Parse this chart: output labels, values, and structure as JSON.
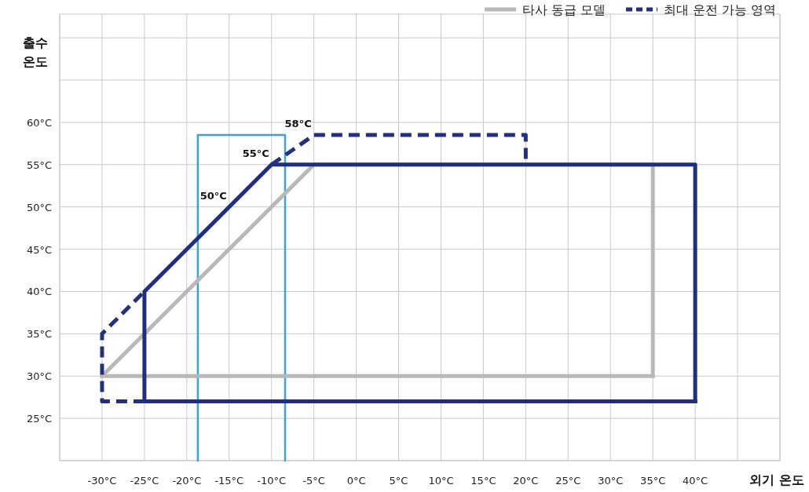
{
  "chart_data": {
    "type": "line",
    "xlabel": "외기 온도",
    "ylabel": "출수\n온도",
    "legend": "top right",
    "grid": true,
    "marker": "none",
    "xlim": [
      -35,
      50
    ],
    "ylim": [
      20,
      72.8
    ],
    "xticks": [
      {
        "value": -35,
        "label": null
      },
      {
        "value": -30,
        "label": "-30°C"
      },
      {
        "value": -25,
        "label": "-25°C"
      },
      {
        "value": -20,
        "label": "-20°C"
      },
      {
        "value": -15,
        "label": "-15°C"
      },
      {
        "value": -10,
        "label": "-10°C"
      },
      {
        "value": -5,
        "label": "-5°C"
      },
      {
        "value": 0,
        "label": "0°C"
      },
      {
        "value": 5,
        "label": "5°C"
      },
      {
        "value": 10,
        "label": "10°C"
      },
      {
        "value": 15,
        "label": "15°C"
      },
      {
        "value": 20,
        "label": "20°C"
      },
      {
        "value": 25,
        "label": "25°C"
      },
      {
        "value": 30,
        "label": "30°C"
      },
      {
        "value": 35,
        "label": "35°C"
      },
      {
        "value": 40,
        "label": "40°C"
      },
      {
        "value": 45,
        "label": null
      },
      {
        "value": 50,
        "label": null
      }
    ],
    "yticks": [
      {
        "value": 20,
        "label": null
      },
      {
        "value": 25,
        "label": "25°C"
      },
      {
        "value": 30,
        "label": "30°C"
      },
      {
        "value": 35,
        "label": "35°C"
      },
      {
        "value": 40,
        "label": "40°C"
      },
      {
        "value": 45,
        "label": "45°C"
      },
      {
        "value": 50,
        "label": "50°C"
      },
      {
        "value": 55,
        "label": "55°C"
      },
      {
        "value": 60,
        "label": "60°C"
      },
      {
        "value": 65,
        "label": null
      },
      {
        "value": 70,
        "label": null
      }
    ],
    "series": [
      {
        "color": "#3ea0dc",
        "line_style": "solid",
        "x": [
          -18.7,
          -18.7,
          -8.4,
          -8.4
        ],
        "values": [
          20,
          58.5,
          58.5,
          20
        ]
      },
      {
        "name": "타사 동급 모델",
        "color": "#b8b8b8",
        "line_style": "solid",
        "x": [
          -30,
          -5,
          35,
          35,
          null,
          35,
          -30
        ],
        "values": [
          30,
          55,
          55,
          30,
          null,
          30,
          30
        ]
      },
      {
        "color": "#1f2e7e",
        "line_style": "solid",
        "x": [
          -25,
          -25,
          -10,
          40,
          40,
          null,
          40,
          -25
        ],
        "values": [
          27,
          40,
          55,
          55,
          27,
          null,
          27,
          27
        ]
      },
      {
        "name": "최대 운전 가능 영역",
        "color": "#22307f",
        "line_style": "dashed",
        "x": [
          -25,
          -30,
          -30,
          -25,
          null,
          -10,
          -5,
          20,
          20
        ],
        "values": [
          27,
          27,
          35,
          40,
          null,
          55,
          58.5,
          58.5,
          55
        ]
      }
    ],
    "annotations": [
      {
        "text": "50°C",
        "x": -15,
        "y": 50
      },
      {
        "text": "55°C",
        "x": -10,
        "y": 55
      },
      {
        "text": "58°C",
        "x": -5,
        "y": 58.5
      }
    ]
  }
}
